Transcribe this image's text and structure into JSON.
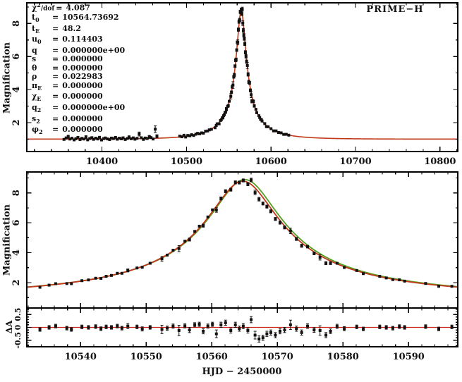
{
  "figure": {
    "title_label": "PRIME−H",
    "xlabel": "HJD − 2450000",
    "ylabel_main": "Magnification",
    "ylabel_resid": "ΔA",
    "colors": {
      "model_red": "#c1391a",
      "model_green": "#55a024",
      "resid_line": "#cc2418",
      "points": "#141010",
      "axis": "#000000",
      "bg": "#ffffff"
    }
  },
  "parameters": {
    "eq": "=",
    "items": [
      {
        "pre": "χ",
        "sup": "2",
        "sub": "",
        "post": "/dof",
        "value": "4.087"
      },
      {
        "pre": "t",
        "sup": "",
        "sub": "0",
        "post": "",
        "value": "10564.73692"
      },
      {
        "pre": "t",
        "sup": "",
        "sub": "E",
        "post": "",
        "value": "48.2"
      },
      {
        "pre": "u",
        "sup": "",
        "sub": "0",
        "post": "",
        "value": "0.114403"
      },
      {
        "pre": "q",
        "sup": "",
        "sub": "",
        "post": "",
        "value": "0.000000e+00"
      },
      {
        "pre": "s",
        "sup": "",
        "sub": "",
        "post": "",
        "value": "0.000000"
      },
      {
        "pre": "θ",
        "sup": "",
        "sub": "",
        "post": "",
        "value": "0.000000"
      },
      {
        "pre": "ρ",
        "sup": "",
        "sub": "",
        "post": "",
        "value": "0.022983"
      },
      {
        "pre": "π",
        "sup": "",
        "sub": "E",
        "post": "",
        "value": "0.000000"
      },
      {
        "pre": "χ",
        "sup": "",
        "sub": "E",
        "post": "",
        "value": "0.000000"
      },
      {
        "pre": "q",
        "sup": "",
        "sub": "2",
        "post": "",
        "value": "0.000000e+00"
      },
      {
        "pre": "s",
        "sup": "",
        "sub": "2",
        "post": "",
        "value": "0.000000"
      },
      {
        "pre": "φ",
        "sup": "",
        "sub": "2",
        "post": "",
        "value": "0.000000"
      }
    ]
  },
  "chart_data": [
    {
      "type": "line",
      "name": "full-lightcurve",
      "title": "PRIME−H",
      "ylabel": "Magnification",
      "xlim": [
        10311,
        10821
      ],
      "ylim": [
        0.25,
        9.25
      ],
      "xticks": [
        10400,
        10500,
        10600,
        10700,
        10800
      ],
      "xminor": 20,
      "yticks": [
        2,
        4,
        6,
        8
      ],
      "yminor": 1,
      "model": {
        "t0": 10564.73692,
        "tE": 48.2,
        "u0": 0.114403,
        "rho": 0.022983,
        "peak_A": 8.78
      },
      "points_baseline": [
        [
          10355,
          -0.02,
          0.06
        ],
        [
          10357.5,
          0.07,
          0.06
        ],
        [
          10360,
          0.14,
          0.09
        ],
        [
          10362,
          0,
          0.06
        ],
        [
          10364.5,
          0.05,
          0.06
        ],
        [
          10367,
          -0.05,
          0.06
        ],
        [
          10369,
          0.02,
          0.06
        ],
        [
          10371.5,
          0.1,
          0.07
        ],
        [
          10374,
          -0.03,
          0.06
        ],
        [
          10376,
          0.04,
          0.06
        ],
        [
          10378.5,
          0,
          0.06
        ],
        [
          10381,
          0.12,
          0.08
        ],
        [
          10383,
          -0.05,
          0.06
        ],
        [
          10385.5,
          0.03,
          0.06
        ],
        [
          10388,
          0.08,
          0.06
        ],
        [
          10390,
          -0.02,
          0.06
        ],
        [
          10392.5,
          0.05,
          0.06
        ],
        [
          10395,
          0,
          0.06
        ],
        [
          10397,
          0.1,
          0.07
        ],
        [
          10399.5,
          -0.06,
          0.06
        ],
        [
          10402,
          0.02,
          0.06
        ],
        [
          10404,
          0.06,
          0.06
        ],
        [
          10406.5,
          0,
          0.06
        ],
        [
          10409,
          -0.04,
          0.06
        ],
        [
          10411,
          0.05,
          0.06
        ],
        [
          10413.5,
          0.02,
          0.06
        ],
        [
          10416,
          0.09,
          0.07
        ],
        [
          10418,
          -0.02,
          0.06
        ],
        [
          10420.5,
          0.04,
          0.06
        ],
        [
          10423,
          0,
          0.06
        ],
        [
          10425,
          0.06,
          0.06
        ],
        [
          10427.5,
          -0.04,
          0.06
        ],
        [
          10430,
          0.02,
          0.06
        ],
        [
          10432,
          0.1,
          0.08
        ],
        [
          10434.5,
          0,
          0.06
        ],
        [
          10437,
          0.05,
          0.06
        ],
        [
          10439,
          -0.03,
          0.06
        ],
        [
          10441.5,
          0.02,
          0.06
        ],
        [
          10444,
          0.28,
          0.12
        ],
        [
          10446.5,
          0.05,
          0.06
        ],
        [
          10449,
          -0.05,
          0.06
        ],
        [
          10451,
          0.03,
          0.06
        ],
        [
          10453.5,
          0,
          0.06
        ],
        [
          10456,
          0.1,
          0.08
        ],
        [
          10458,
          0.05,
          0.06
        ],
        [
          10460.5,
          -0.04,
          0.07
        ],
        [
          10463,
          0.55,
          0.2
        ],
        [
          10465,
          0.12,
          0.09
        ],
        [
          10492,
          0.05,
          0.07
        ],
        [
          10494.5,
          0,
          0.06
        ],
        [
          10497,
          0.08,
          0.07
        ],
        [
          10499,
          -0.04,
          0.06
        ],
        [
          10501.5,
          0.04,
          0.06
        ],
        [
          10504,
          0,
          0.06
        ],
        [
          10506,
          0.05,
          0.06
        ],
        [
          10508.5,
          -0.02,
          0.06
        ],
        [
          10511,
          0.03,
          0.06
        ],
        [
          10513,
          0.06,
          0.06
        ],
        [
          10515.5,
          0,
          0.06
        ],
        [
          10518,
          0.02,
          0.06
        ],
        [
          10520,
          -0.03,
          0.06
        ],
        [
          10522.5,
          0.04,
          0.06
        ],
        [
          10525,
          0,
          0.06
        ],
        [
          10527,
          0.02,
          0.06
        ],
        [
          10529.5,
          -0.02,
          0.06
        ]
      ],
      "points_tail": [
        [
          10600,
          0.02,
          0.06
        ],
        [
          10603,
          -0.03,
          0.06
        ],
        [
          10606,
          0.04,
          0.06
        ],
        [
          10609,
          0,
          0.06
        ],
        [
          10612,
          0.03,
          0.06
        ],
        [
          10615,
          -0.02,
          0.06
        ],
        [
          10618,
          0.02,
          0.06
        ],
        [
          10621,
          0,
          0.06
        ]
      ]
    },
    {
      "type": "line",
      "name": "zoom-lightcurve",
      "ylabel": "Magnification",
      "xlim": [
        10531.8,
        10597.5
      ],
      "ylim": [
        0.3,
        9.4
      ],
      "xticks": [
        10540,
        10550,
        10560,
        10570,
        10580,
        10590
      ],
      "xminor": 2,
      "yticks": [
        2,
        4,
        6,
        8
      ],
      "yminor": 1,
      "model": {
        "t0": 10564.73692,
        "tE": 48.2,
        "u0": 0.114403,
        "green_shift": -0.3,
        "green_scale": 1.012
      },
      "points": [
        [
          10533.8,
          -0.08,
          0.07
        ],
        [
          10535.2,
          0,
          0.07
        ],
        [
          10536.2,
          0.05,
          0.07
        ],
        [
          10537.9,
          -0.03,
          0.07
        ],
        [
          10538.6,
          -0.08,
          0.07
        ],
        [
          10540.2,
          0.02,
          0.07
        ],
        [
          10541.2,
          0,
          0.07
        ],
        [
          10542.3,
          0.03,
          0.07
        ],
        [
          10543.1,
          -0.05,
          0.07
        ],
        [
          10543.9,
          0.02,
          0.07
        ],
        [
          10544.7,
          0,
          0.07
        ],
        [
          10545.6,
          0.05,
          0.07
        ],
        [
          10546.3,
          -0.03,
          0.07
        ],
        [
          10547.2,
          0.05,
          0.1
        ],
        [
          10548.6,
          0.02,
          0.07
        ],
        [
          10549.4,
          -0.06,
          0.08
        ],
        [
          10550.6,
          0,
          0.07
        ],
        [
          10552.4,
          -0.08,
          0.16
        ],
        [
          10553.2,
          -0.03,
          0.08
        ],
        [
          10554.1,
          0.05,
          0.08
        ],
        [
          10555,
          -0.12,
          0.2
        ],
        [
          10555.9,
          0.06,
          0.08
        ],
        [
          10556.6,
          -0.1,
          0.1
        ],
        [
          10557.4,
          0.1,
          0.08
        ],
        [
          10558.1,
          0.12,
          0.08
        ],
        [
          10558.7,
          -0.15,
          0.1
        ],
        [
          10559.4,
          0.05,
          0.08
        ],
        [
          10560.1,
          0.12,
          0.08
        ],
        [
          10560.7,
          -0.25,
          0.15
        ],
        [
          10561.4,
          0.1,
          0.1
        ],
        [
          10562.1,
          0.18,
          0.1
        ],
        [
          10562.9,
          -0.12,
          0.1
        ],
        [
          10563.6,
          0.1,
          0.1
        ],
        [
          10564.2,
          -0.05,
          0.1
        ],
        [
          10564.8,
          0.05,
          0.1
        ],
        [
          10565.5,
          -0.12,
          0.1
        ],
        [
          10566,
          0.3,
          0.12
        ],
        [
          10566.6,
          -0.3,
          0.15
        ],
        [
          10567.2,
          -0.45,
          0.12
        ],
        [
          10567.8,
          -0.4,
          0.1
        ],
        [
          10568.4,
          -0.25,
          0.1
        ],
        [
          10569,
          -0.2,
          0.1
        ],
        [
          10569.7,
          -0.3,
          0.1
        ],
        [
          10570.4,
          -0.15,
          0.1
        ],
        [
          10571.1,
          -0.1,
          0.1
        ],
        [
          10572,
          0.1,
          0.18
        ],
        [
          10572.9,
          -0.05,
          0.1
        ],
        [
          10573.7,
          -0.2,
          0.1
        ],
        [
          10574.6,
          0.05,
          0.09
        ],
        [
          10575.6,
          -0.1,
          0.09
        ],
        [
          10576.5,
          -0.12,
          0.18
        ],
        [
          10577.4,
          -0.3,
          0.1
        ],
        [
          10578.1,
          -0.15,
          0.09
        ],
        [
          10579.1,
          0.04,
          0.08
        ],
        [
          10580.2,
          -0.05,
          0.08
        ],
        [
          10582.1,
          0.02,
          0.07
        ],
        [
          10583.1,
          -0.06,
          0.07
        ],
        [
          10585.6,
          0.02,
          0.07
        ],
        [
          10586.6,
          0,
          0.07
        ],
        [
          10587.6,
          -0.03,
          0.07
        ],
        [
          10588.6,
          0.03,
          0.07
        ],
        [
          10589.4,
          0,
          0.07
        ],
        [
          10592.6,
          0.03,
          0.07
        ],
        [
          10594.6,
          -0.06,
          0.07
        ],
        [
          10596.6,
          0.02,
          0.07
        ]
      ]
    },
    {
      "type": "scatter",
      "name": "residuals",
      "ylabel": "ΔA",
      "xlabel": "HJD − 2450000",
      "xlim": [
        10531.8,
        10597.5
      ],
      "ylim": [
        -0.75,
        0.75
      ],
      "yticks": [
        0.5,
        0,
        -0.5
      ],
      "ytick_labels": [
        "0.5",
        "0",
        "-0.5"
      ],
      "yminor": 0.1,
      "xminor": 2,
      "zero_line": 0
    }
  ]
}
